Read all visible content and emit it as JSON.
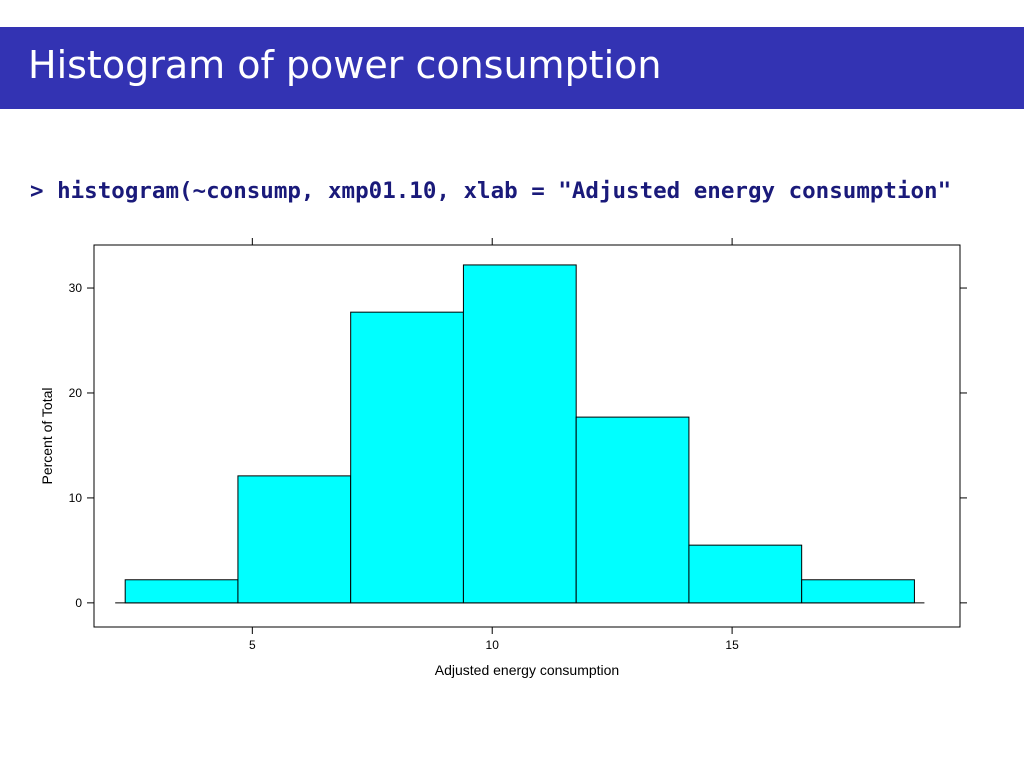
{
  "slide": {
    "title": "Histogram of power consumption",
    "code": "> histogram(~consump, xmp01.10, xlab = \"Adjusted energy consumption\""
  },
  "chart_data": {
    "type": "bar",
    "subtype": "histogram",
    "bin_edges": [
      2.35,
      4.7,
      7.05,
      9.4,
      11.75,
      14.1,
      16.45,
      18.8
    ],
    "values": [
      2.2,
      12.1,
      27.7,
      32.2,
      17.7,
      5.5,
      2.2
    ],
    "xlabel": "Adjusted energy consumption",
    "ylabel": "Percent of Total",
    "xlim": [
      1.7,
      19.75
    ],
    "ylim": [
      -2.3,
      34.1
    ],
    "x_ticks": [
      5,
      10,
      15
    ],
    "y_ticks": [
      0,
      10,
      20,
      30
    ],
    "bar_color": "#00ffff",
    "bar_edge_color": "#000000",
    "grid": false
  }
}
